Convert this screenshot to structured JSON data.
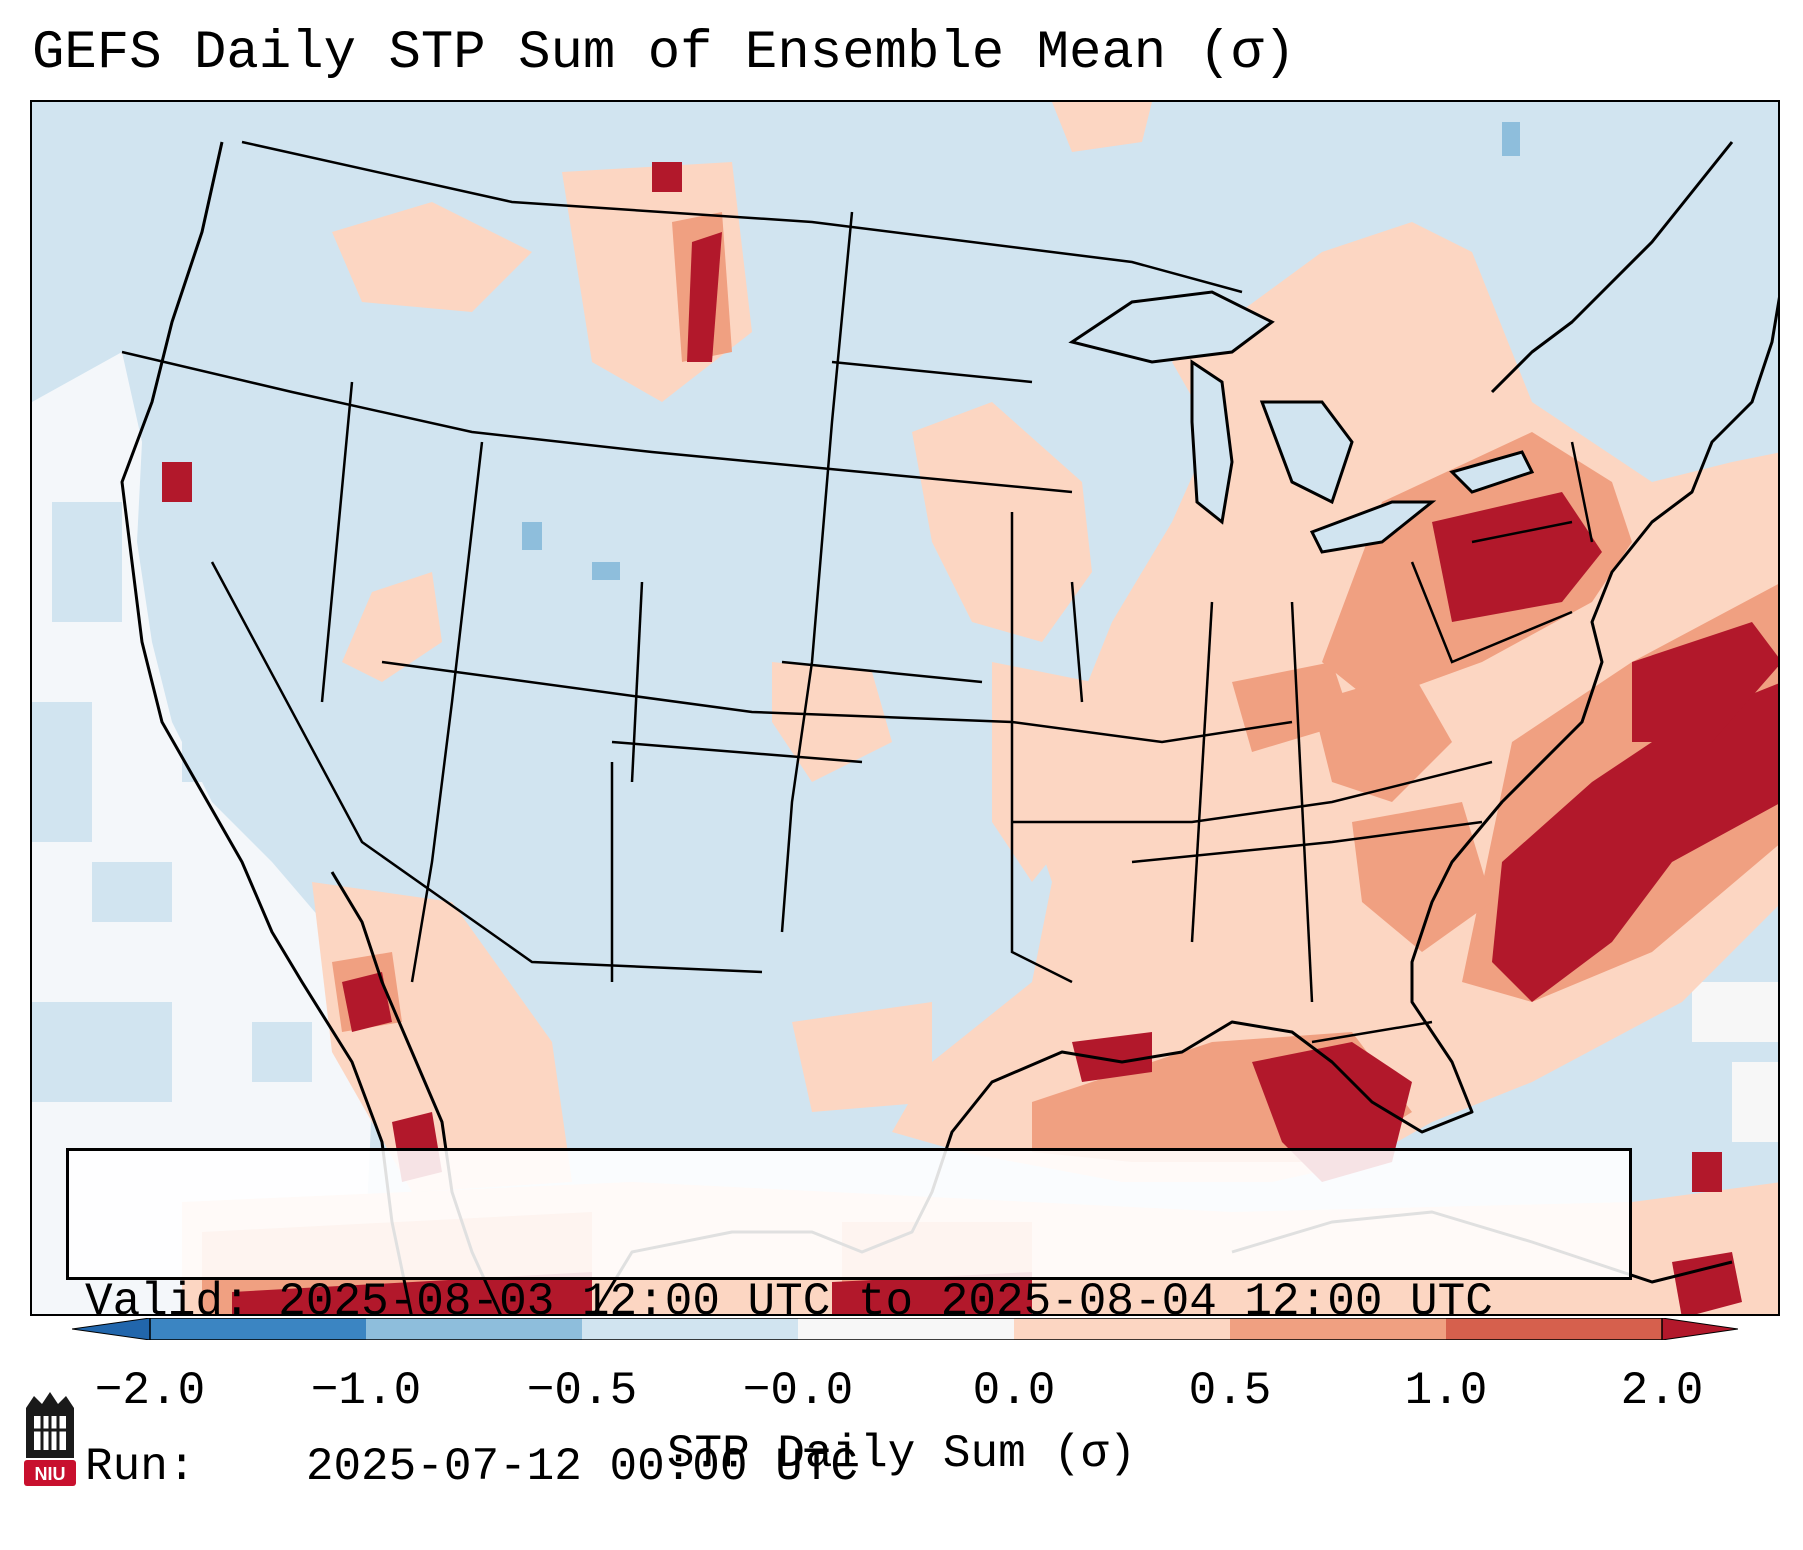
{
  "title": "GEFS Daily STP Sum of Ensemble Mean (σ)",
  "info": {
    "valid_label": "Valid:",
    "valid_value": "2025-08-03 12:00 UTC to 2025-08-04 12:00 UTC",
    "run_label": "Run:",
    "run_value": "2025-07-12 00:00 UTC"
  },
  "colorbar": {
    "label": "STP Daily Sum (σ)",
    "ticks": [
      "−2.0",
      "−1.0",
      "−0.5",
      "−0.0",
      "0.0",
      "0.5",
      "1.0",
      "2.0"
    ],
    "colors": [
      "#3b85c2",
      "#8ebedc",
      "#d1e4f0",
      "#f7f7f7",
      "#fcd6c2",
      "#f0a081",
      "#d6604d",
      "#b2182b"
    ],
    "extend_low_color": "#2166ac",
    "extend_high_color": "#b2182b"
  },
  "map": {
    "background_color": "#d1e4f0",
    "coastline_color": "#000000"
  },
  "logo": {
    "text": "NIU",
    "color": "#c8102e"
  }
}
